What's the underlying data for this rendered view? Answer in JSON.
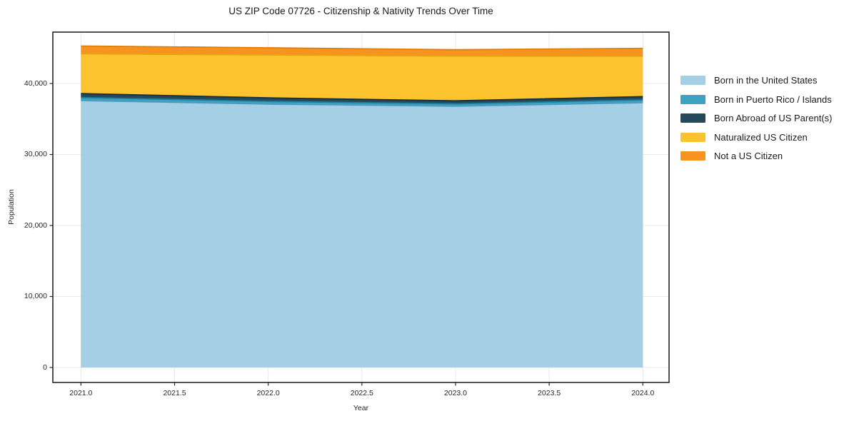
{
  "figure": {
    "background_color": "#ffffff",
    "frame_color": "#262626",
    "grid_color": "#e8e8e8",
    "text_color": "#262626"
  },
  "chart_data": {
    "type": "area",
    "stacked": true,
    "title": "US ZIP Code 07726 - Citizenship & Nativity Trends Over Time",
    "xlabel": "Year",
    "ylabel": "Population",
    "grid": true,
    "legend_position": "right-outside",
    "x": [
      2021,
      2022,
      2023,
      2024
    ],
    "x_tick_values": [
      2021.0,
      2021.5,
      2022.0,
      2022.5,
      2023.0,
      2023.5,
      2024.0
    ],
    "x_tick_labels": [
      "2021.0",
      "2021.5",
      "2022.0",
      "2022.5",
      "2023.0",
      "2023.5",
      "2024.0"
    ],
    "y_tick_values": [
      0,
      10000,
      20000,
      30000,
      40000
    ],
    "y_tick_labels": [
      "0",
      "10,000",
      "20,000",
      "30,000",
      "40,000"
    ],
    "xlim": [
      2020.85,
      2024.14
    ],
    "ylim": [
      -2110,
      47240
    ],
    "series": [
      {
        "name": "Born in the United States",
        "color": "#a5cfe5",
        "edge_color": "#4f9ac0",
        "values": [
          37600,
          37100,
          36800,
          37300
        ]
      },
      {
        "name": "Born in Puerto Rico / Islands",
        "color": "#3ea3c3",
        "edge_color": "#1f7f9e",
        "values": [
          420,
          380,
          330,
          380
        ]
      },
      {
        "name": "Born Abroad of US Parent(s)",
        "color": "#26485b",
        "edge_color": "#132f3d",
        "values": [
          560,
          500,
          430,
          470
        ]
      },
      {
        "name": "Naturalized US Citizen",
        "color": "#fcc32f",
        "edge_color": "#e5a711",
        "values": [
          5600,
          6050,
          6300,
          5700
        ]
      },
      {
        "name": "Not a US Citizen",
        "color": "#f6941f",
        "edge_color": "#e07e0c",
        "values": [
          1100,
          1000,
          900,
          1100
        ]
      }
    ]
  }
}
